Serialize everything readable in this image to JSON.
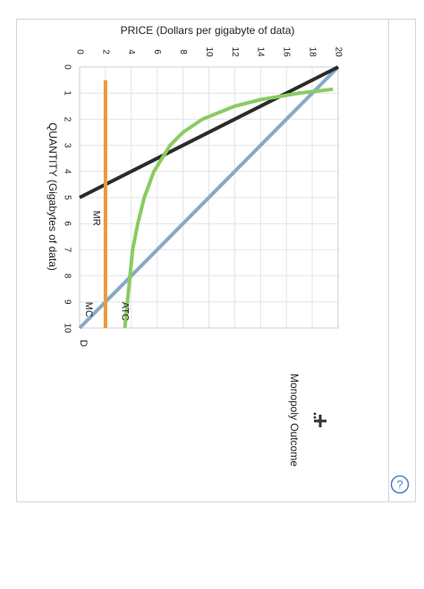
{
  "chart_data": {
    "type": "line",
    "title": "PRICE (Dollars per gigabyte of data)",
    "x_label": "QUANTITY (Gigabytes of data)",
    "xlim": [
      0,
      10
    ],
    "xticks": [
      0,
      1,
      2,
      3,
      4,
      5,
      6,
      7,
      8,
      9,
      10
    ],
    "ylim": [
      0,
      20
    ],
    "yticks": [
      0,
      2,
      4,
      6,
      8,
      10,
      12,
      14,
      16,
      18,
      20
    ],
    "grid": true,
    "series": [
      {
        "name": "D",
        "color": "#86a9c9",
        "x": [
          0,
          10
        ],
        "values": [
          20,
          0
        ]
      },
      {
        "name": "MR",
        "color": "#2b2b2b",
        "x": [
          0,
          5
        ],
        "values": [
          20,
          0
        ]
      },
      {
        "name": "MC",
        "color": "#eb9a3c",
        "x": [
          0.5,
          10
        ],
        "values": [
          2,
          2
        ]
      },
      {
        "name": "ATC",
        "color": "#8acb62",
        "x": [
          0.85,
          1,
          1.25,
          1.5,
          2,
          2.5,
          3,
          4,
          5,
          6,
          7,
          8,
          9,
          10
        ],
        "values": [
          19.6,
          17,
          14,
          12,
          9.5,
          8,
          7,
          5.75,
          5,
          4.5,
          4.1,
          3.9,
          3.7,
          3.5
        ]
      }
    ],
    "legend_item": "Monopoly Outcome"
  }
}
